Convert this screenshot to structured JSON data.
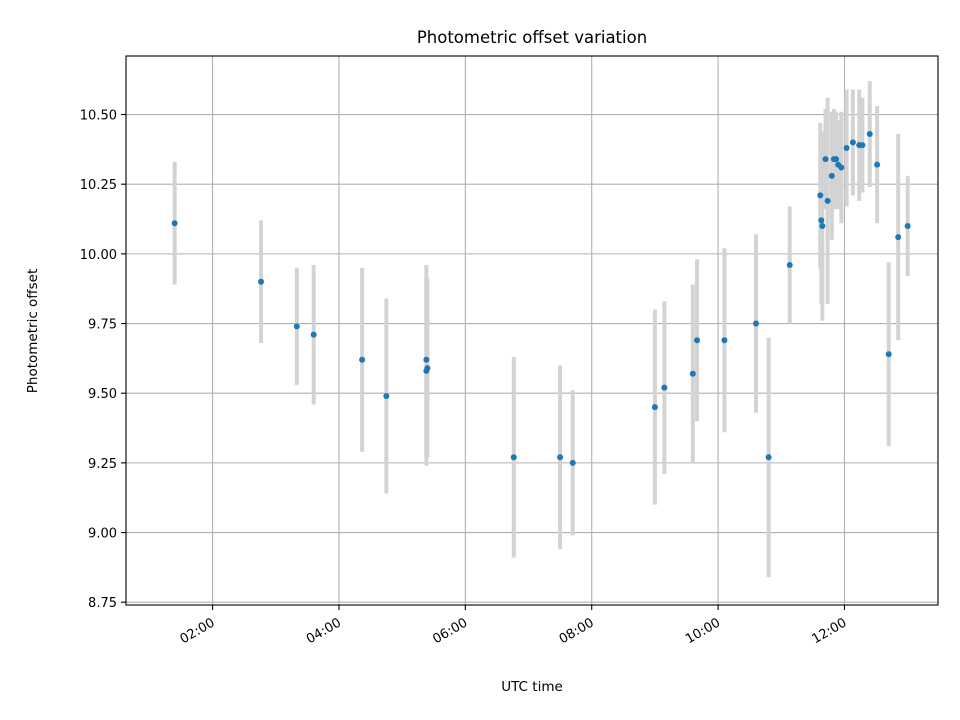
{
  "chart_data": {
    "type": "scatter",
    "title": "Photometric offset variation",
    "xlabel": "UTC time",
    "ylabel": "Photometric offset",
    "x_unit": "hours",
    "xlim": [
      0.63,
      13.48
    ],
    "ylim": [
      8.74,
      10.71
    ],
    "x_ticks": [
      {
        "value": 2,
        "label": "02:00"
      },
      {
        "value": 4,
        "label": "04:00"
      },
      {
        "value": 6,
        "label": "06:00"
      },
      {
        "value": 8,
        "label": "08:00"
      },
      {
        "value": 10,
        "label": "10:00"
      },
      {
        "value": 12,
        "label": "12:00"
      }
    ],
    "y_ticks": [
      {
        "value": 8.75,
        "label": "8.75"
      },
      {
        "value": 9.0,
        "label": "9.00"
      },
      {
        "value": 9.25,
        "label": "9.25"
      },
      {
        "value": 9.5,
        "label": "9.50"
      },
      {
        "value": 9.75,
        "label": "9.75"
      },
      {
        "value": 10.0,
        "label": "10.00"
      },
      {
        "value": 10.25,
        "label": "10.25"
      },
      {
        "value": 10.5,
        "label": "10.50"
      }
    ],
    "grid": true,
    "marker_color": "#1f77b4",
    "errorbar_color": "#d3d3d3",
    "points": [
      {
        "x": "01:24",
        "y": 10.11,
        "err": 0.22
      },
      {
        "x": "02:46",
        "y": 9.9,
        "err": 0.22
      },
      {
        "x": "03:20",
        "y": 9.74,
        "err": 0.21
      },
      {
        "x": "03:36",
        "y": 9.71,
        "err": 0.25
      },
      {
        "x": "04:22",
        "y": 9.62,
        "err": 0.33
      },
      {
        "x": "04:45",
        "y": 9.49,
        "err": 0.35
      },
      {
        "x": "05:23",
        "y": 9.62,
        "err": 0.34
      },
      {
        "x": "05:24",
        "y": 9.59,
        "err": 0.32
      },
      {
        "x": "05:23",
        "y": 9.58,
        "err": 0.34
      },
      {
        "x": "06:46",
        "y": 9.27,
        "err": 0.36
      },
      {
        "x": "07:30",
        "y": 9.27,
        "err": 0.33
      },
      {
        "x": "07:42",
        "y": 9.25,
        "err": 0.26
      },
      {
        "x": "09:00",
        "y": 9.45,
        "err": 0.35
      },
      {
        "x": "09:09",
        "y": 9.52,
        "err": 0.31
      },
      {
        "x": "09:36",
        "y": 9.57,
        "err": 0.32
      },
      {
        "x": "09:40",
        "y": 9.69,
        "err": 0.29
      },
      {
        "x": "10:06",
        "y": 9.69,
        "err": 0.33
      },
      {
        "x": "10:36",
        "y": 9.75,
        "err": 0.32
      },
      {
        "x": "10:48",
        "y": 9.27,
        "err": 0.43
      },
      {
        "x": "11:08",
        "y": 9.96,
        "err": 0.21
      },
      {
        "x": "11:37",
        "y": 10.21,
        "err": 0.26
      },
      {
        "x": "11:38",
        "y": 10.12,
        "err": 0.3
      },
      {
        "x": "11:39",
        "y": 10.1,
        "err": 0.34
      },
      {
        "x": "11:42",
        "y": 10.34,
        "err": 0.18
      },
      {
        "x": "11:44",
        "y": 10.19,
        "err": 0.37
      },
      {
        "x": "11:48",
        "y": 10.28,
        "err": 0.23
      },
      {
        "x": "11:50",
        "y": 10.34,
        "err": 0.18
      },
      {
        "x": "11:52",
        "y": 10.34,
        "err": 0.17
      },
      {
        "x": "11:54",
        "y": 10.32,
        "err": 0.16
      },
      {
        "x": "11:57",
        "y": 10.31,
        "err": 0.2
      },
      {
        "x": "12:02",
        "y": 10.38,
        "err": 0.21
      },
      {
        "x": "12:08",
        "y": 10.4,
        "err": 0.19
      },
      {
        "x": "12:14",
        "y": 10.39,
        "err": 0.2
      },
      {
        "x": "12:17",
        "y": 10.39,
        "err": 0.17
      },
      {
        "x": "12:24",
        "y": 10.43,
        "err": 0.19
      },
      {
        "x": "12:31",
        "y": 10.32,
        "err": 0.21
      },
      {
        "x": "12:42",
        "y": 9.64,
        "err": 0.33
      },
      {
        "x": "12:51",
        "y": 10.06,
        "err": 0.37
      },
      {
        "x": "13:00",
        "y": 10.1,
        "err": 0.18
      }
    ]
  }
}
